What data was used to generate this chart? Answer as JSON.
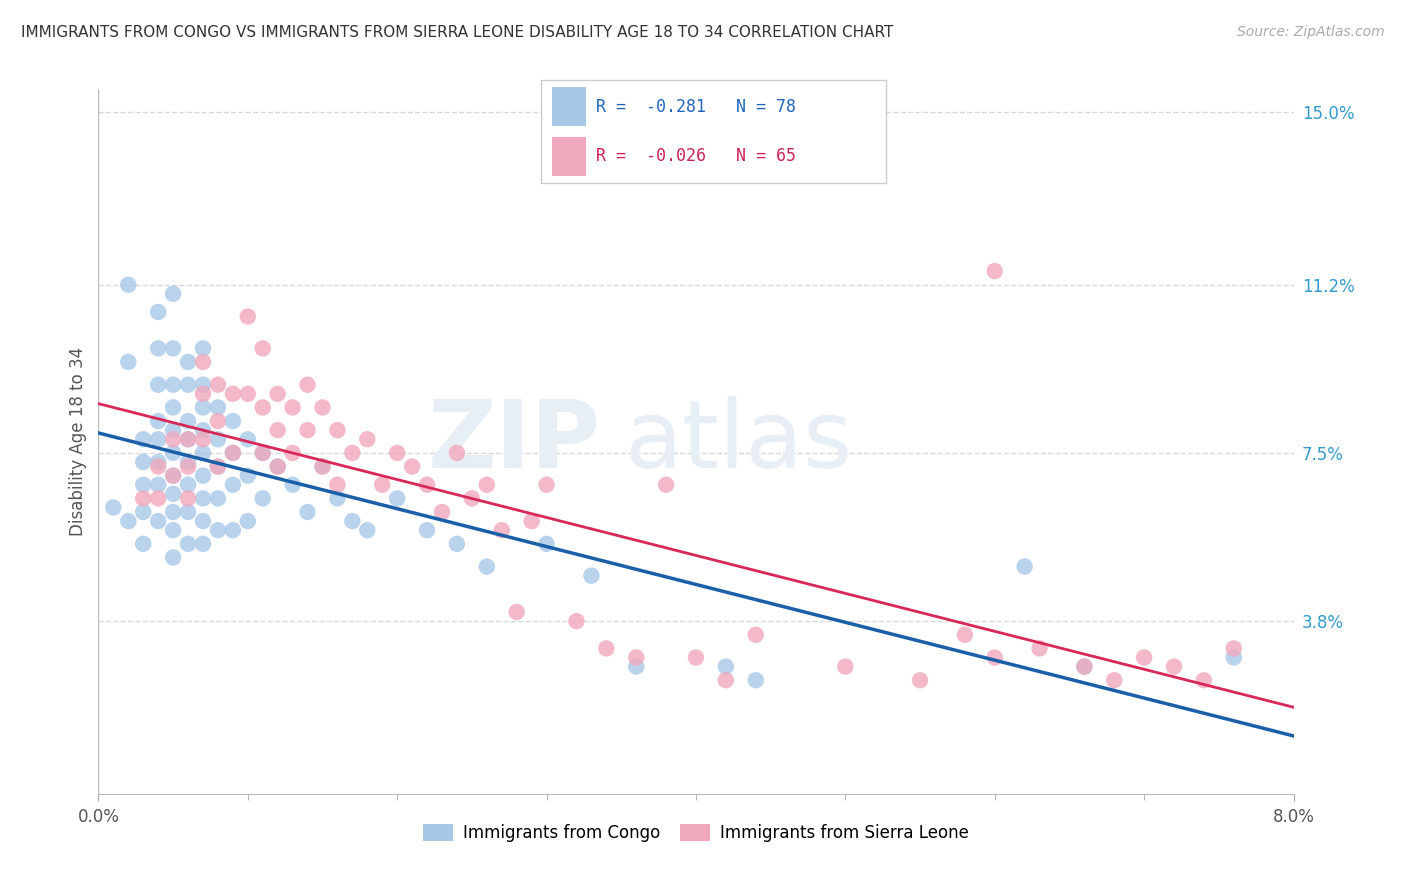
{
  "title": "IMMIGRANTS FROM CONGO VS IMMIGRANTS FROM SIERRA LEONE DISABILITY AGE 18 TO 34 CORRELATION CHART",
  "source": "Source: ZipAtlas.com",
  "ylabel": "Disability Age 18 to 34",
  "xlim": [
    0.0,
    0.08
  ],
  "ylim": [
    0.0,
    0.155
  ],
  "xtick_values": [
    0.0,
    0.08
  ],
  "xtick_labels": [
    "0.0%",
    "8.0%"
  ],
  "right_ytick_labels": [
    "3.8%",
    "7.5%",
    "11.2%",
    "15.0%"
  ],
  "right_ytick_values": [
    0.038,
    0.075,
    0.112,
    0.15
  ],
  "legend1_label": "Immigrants from Congo",
  "legend2_label": "Immigrants from Sierra Leone",
  "R_congo": -0.281,
  "N_congo": 78,
  "R_sierra": -0.026,
  "N_sierra": 65,
  "color_congo": "#a8c8e8",
  "color_sierra": "#f0a8bc",
  "line_color_congo": "#1a5fa8",
  "line_color_sierra": "#d82858",
  "watermark_zip": "ZIP",
  "watermark_atlas": "atlas",
  "background_color": "#ffffff",
  "grid_color": "#d8d8d8",
  "congo_x": [
    0.001,
    0.002,
    0.002,
    0.002,
    0.003,
    0.003,
    0.003,
    0.003,
    0.003,
    0.004,
    0.004,
    0.004,
    0.004,
    0.004,
    0.004,
    0.004,
    0.004,
    0.005,
    0.005,
    0.005,
    0.005,
    0.005,
    0.005,
    0.005,
    0.005,
    0.005,
    0.005,
    0.005,
    0.006,
    0.006,
    0.006,
    0.006,
    0.006,
    0.006,
    0.006,
    0.006,
    0.007,
    0.007,
    0.007,
    0.007,
    0.007,
    0.007,
    0.007,
    0.007,
    0.007,
    0.008,
    0.008,
    0.008,
    0.008,
    0.008,
    0.009,
    0.009,
    0.009,
    0.009,
    0.01,
    0.01,
    0.01,
    0.011,
    0.011,
    0.012,
    0.013,
    0.014,
    0.015,
    0.016,
    0.017,
    0.018,
    0.02,
    0.022,
    0.024,
    0.026,
    0.03,
    0.033,
    0.036,
    0.042,
    0.044,
    0.062,
    0.066,
    0.076
  ],
  "congo_y": [
    0.063,
    0.06,
    0.112,
    0.095,
    0.078,
    0.073,
    0.068,
    0.062,
    0.055,
    0.106,
    0.098,
    0.09,
    0.082,
    0.078,
    0.073,
    0.068,
    0.06,
    0.11,
    0.098,
    0.09,
    0.085,
    0.08,
    0.075,
    0.07,
    0.066,
    0.062,
    0.058,
    0.052,
    0.095,
    0.09,
    0.082,
    0.078,
    0.073,
    0.068,
    0.062,
    0.055,
    0.098,
    0.09,
    0.085,
    0.08,
    0.075,
    0.07,
    0.065,
    0.06,
    0.055,
    0.085,
    0.078,
    0.072,
    0.065,
    0.058,
    0.082,
    0.075,
    0.068,
    0.058,
    0.078,
    0.07,
    0.06,
    0.075,
    0.065,
    0.072,
    0.068,
    0.062,
    0.072,
    0.065,
    0.06,
    0.058,
    0.065,
    0.058,
    0.055,
    0.05,
    0.055,
    0.048,
    0.028,
    0.028,
    0.025,
    0.05,
    0.028,
    0.03
  ],
  "sierra_x": [
    0.003,
    0.004,
    0.004,
    0.005,
    0.005,
    0.006,
    0.006,
    0.006,
    0.007,
    0.007,
    0.007,
    0.008,
    0.008,
    0.008,
    0.009,
    0.009,
    0.01,
    0.01,
    0.011,
    0.011,
    0.011,
    0.012,
    0.012,
    0.012,
    0.013,
    0.013,
    0.014,
    0.014,
    0.015,
    0.015,
    0.016,
    0.016,
    0.017,
    0.018,
    0.019,
    0.02,
    0.021,
    0.022,
    0.023,
    0.024,
    0.025,
    0.026,
    0.027,
    0.028,
    0.029,
    0.03,
    0.032,
    0.034,
    0.036,
    0.038,
    0.04,
    0.042,
    0.044,
    0.05,
    0.055,
    0.058,
    0.06,
    0.063,
    0.066,
    0.068,
    0.07,
    0.072,
    0.074,
    0.076,
    0.06
  ],
  "sierra_y": [
    0.065,
    0.072,
    0.065,
    0.07,
    0.078,
    0.072,
    0.065,
    0.078,
    0.095,
    0.088,
    0.078,
    0.09,
    0.082,
    0.072,
    0.088,
    0.075,
    0.105,
    0.088,
    0.098,
    0.085,
    0.075,
    0.088,
    0.08,
    0.072,
    0.085,
    0.075,
    0.09,
    0.08,
    0.085,
    0.072,
    0.08,
    0.068,
    0.075,
    0.078,
    0.068,
    0.075,
    0.072,
    0.068,
    0.062,
    0.075,
    0.065,
    0.068,
    0.058,
    0.04,
    0.06,
    0.068,
    0.038,
    0.032,
    0.03,
    0.068,
    0.03,
    0.025,
    0.035,
    0.028,
    0.025,
    0.035,
    0.03,
    0.032,
    0.028,
    0.025,
    0.03,
    0.028,
    0.025,
    0.032,
    0.115
  ]
}
